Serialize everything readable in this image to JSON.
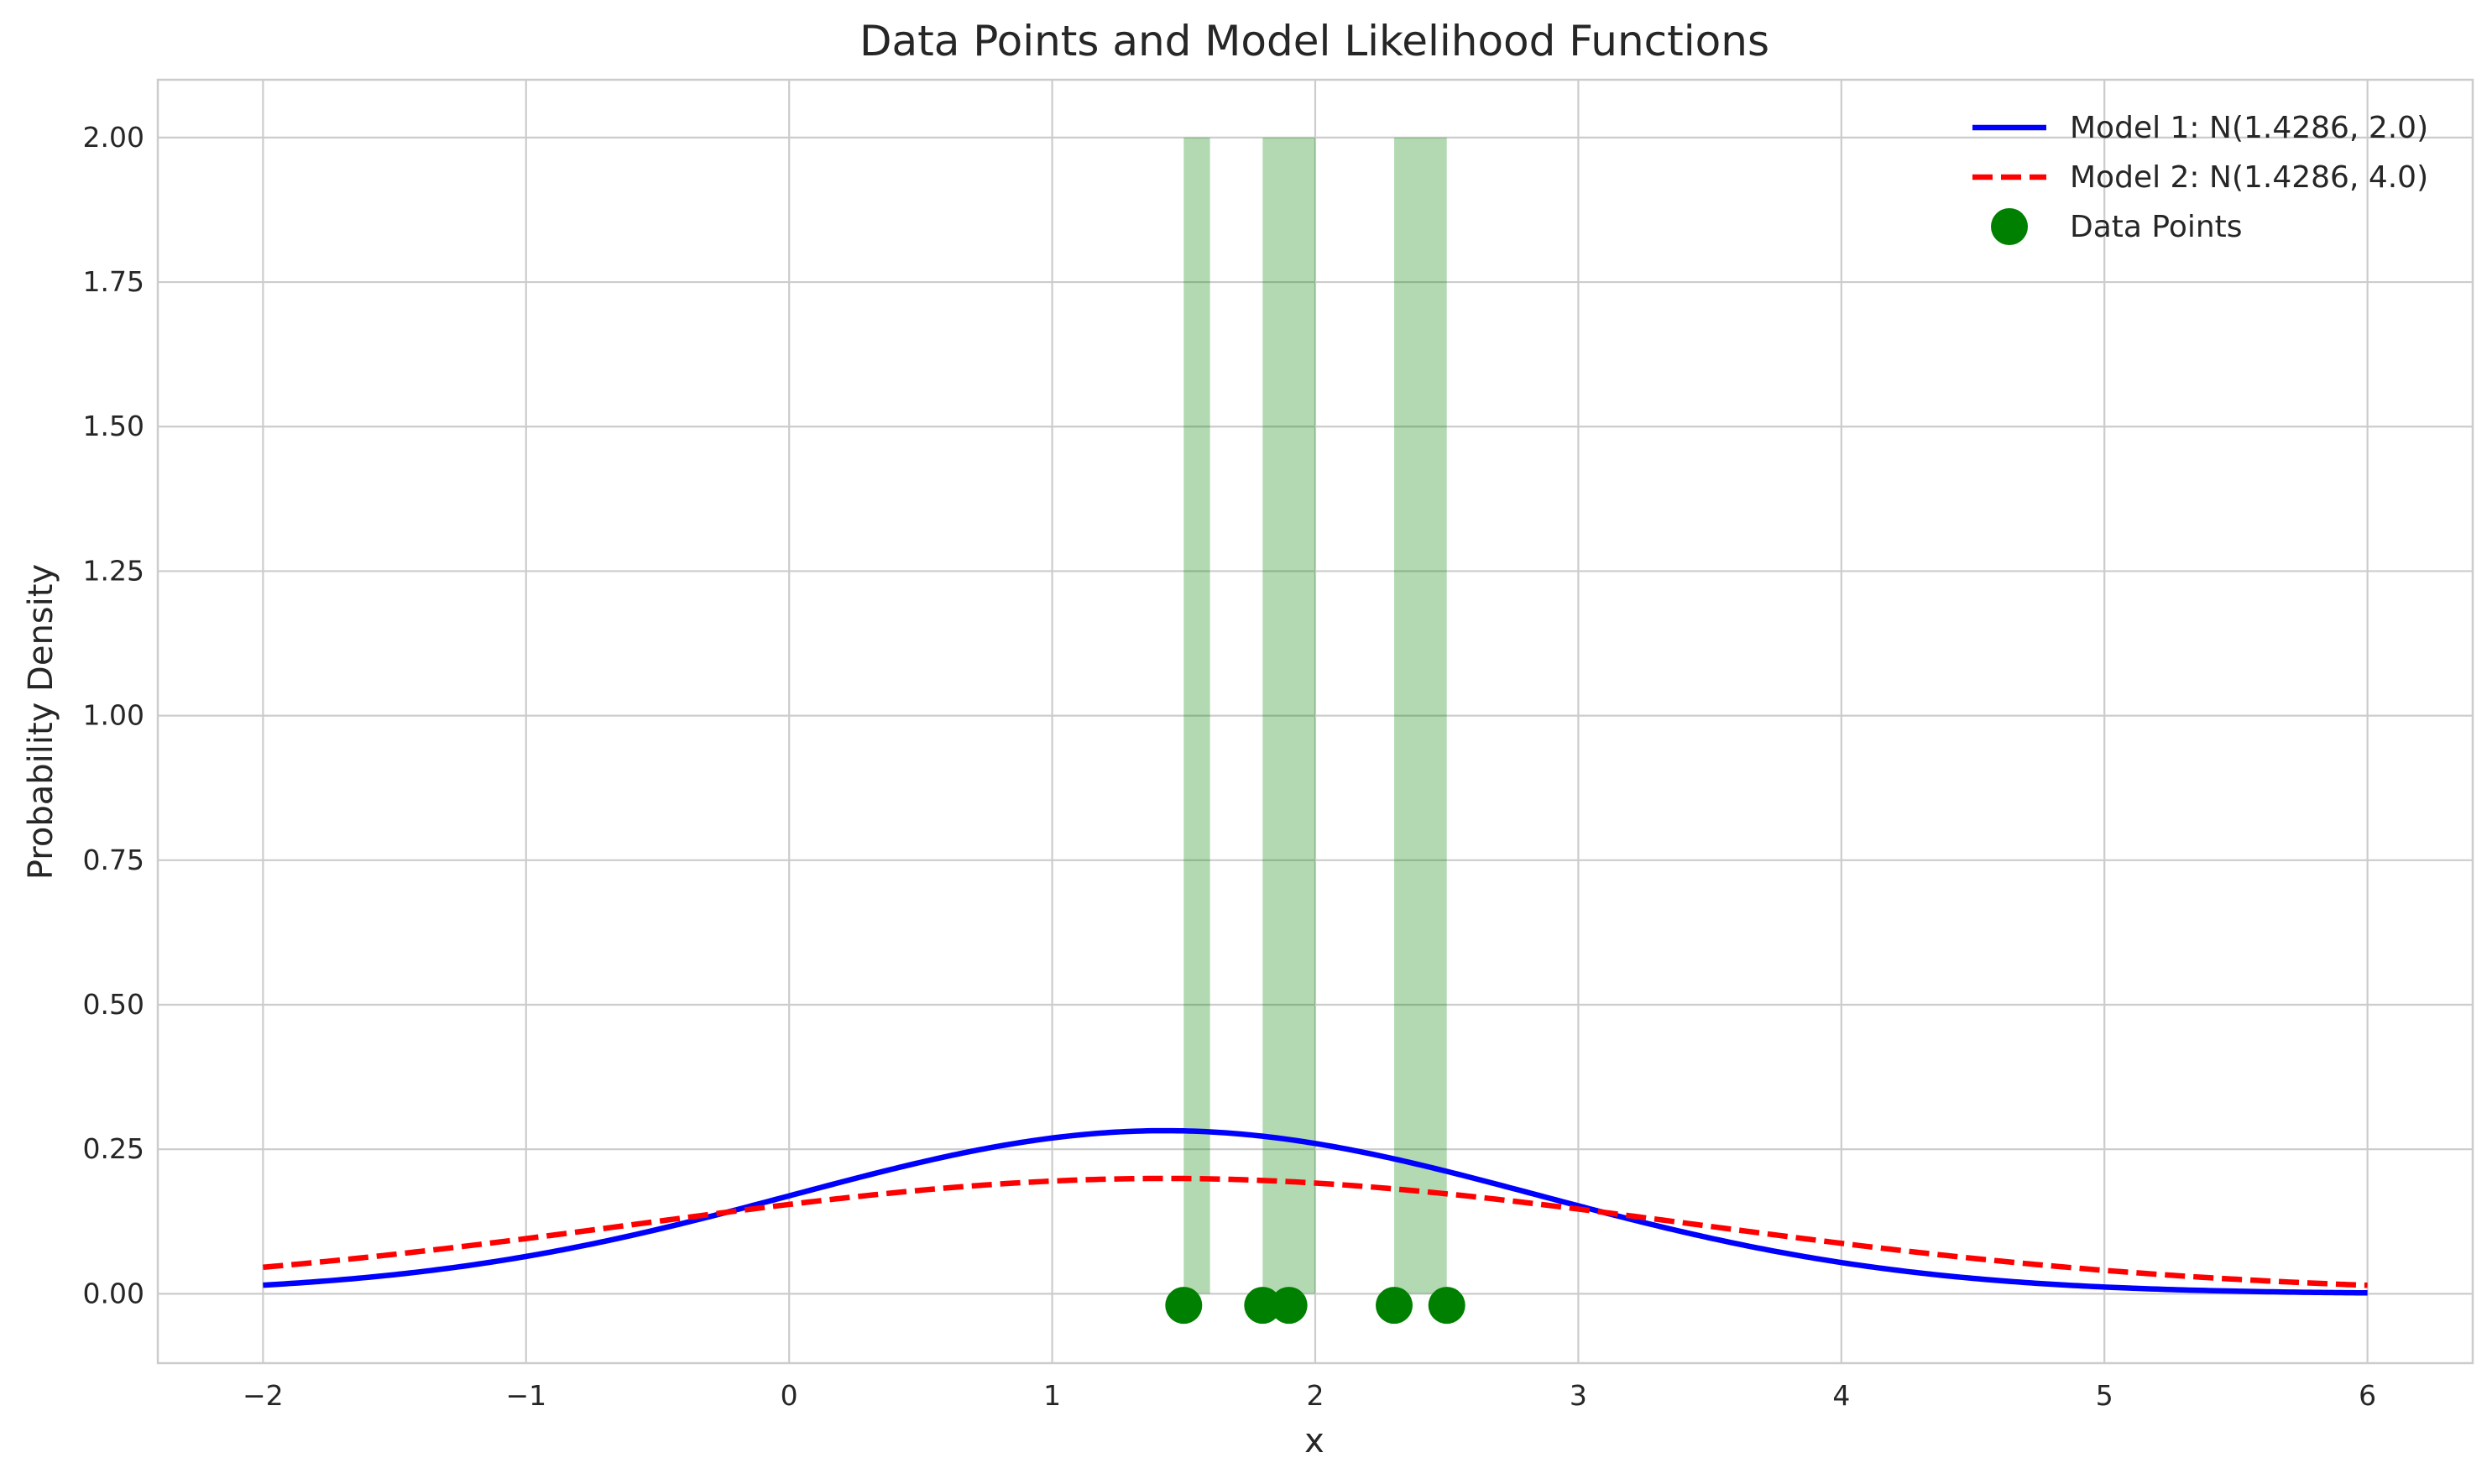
{
  "chart_data": {
    "type": "line",
    "title": "Data Points and Model Likelihood Functions",
    "xlabel": "x",
    "ylabel": "Probability Density",
    "xlim": [
      -2.4,
      6.4
    ],
    "ylim": [
      -0.12,
      2.1
    ],
    "xticks": [
      -2,
      -1,
      0,
      1,
      2,
      3,
      4,
      5,
      6
    ],
    "xtick_labels": [
      "−2",
      "−1",
      "0",
      "1",
      "2",
      "3",
      "4",
      "5",
      "6"
    ],
    "yticks": [
      0.0,
      0.25,
      0.5,
      0.75,
      1.0,
      1.25,
      1.5,
      1.75,
      2.0
    ],
    "ytick_labels": [
      "0.00",
      "0.25",
      "0.50",
      "0.75",
      "1.00",
      "1.25",
      "1.50",
      "1.75",
      "2.00"
    ],
    "grid": true,
    "legend_position": "top-right",
    "series": [
      {
        "name": "Model 1: N(1.4286, 2.0)",
        "kind": "line",
        "mean": 1.4286,
        "variance": 2.0,
        "x_range": [
          -2,
          6
        ],
        "color": "#0000ff",
        "dash": "solid"
      },
      {
        "name": "Model 2: N(1.4286, 4.0)",
        "kind": "line",
        "mean": 1.4286,
        "variance": 4.0,
        "x_range": [
          -2,
          6
        ],
        "color": "#ff0000",
        "dash": "dashed"
      },
      {
        "name": "Data Points",
        "kind": "scatter",
        "x": [
          1.5,
          1.8,
          1.9,
          2.3,
          2.5
        ],
        "y": [
          -0.02,
          -0.02,
          -0.02,
          -0.02,
          -0.02
        ],
        "color": "#008000"
      }
    ],
    "histogram": {
      "color": "#008000",
      "opacity": 0.3,
      "bins": [
        {
          "x0": 1.5,
          "x1": 1.6,
          "value": 2.0
        },
        {
          "x0": 1.8,
          "x1": 2.0,
          "value": 2.0
        },
        {
          "x0": 2.3,
          "x1": 2.5,
          "value": 2.0
        }
      ]
    }
  }
}
